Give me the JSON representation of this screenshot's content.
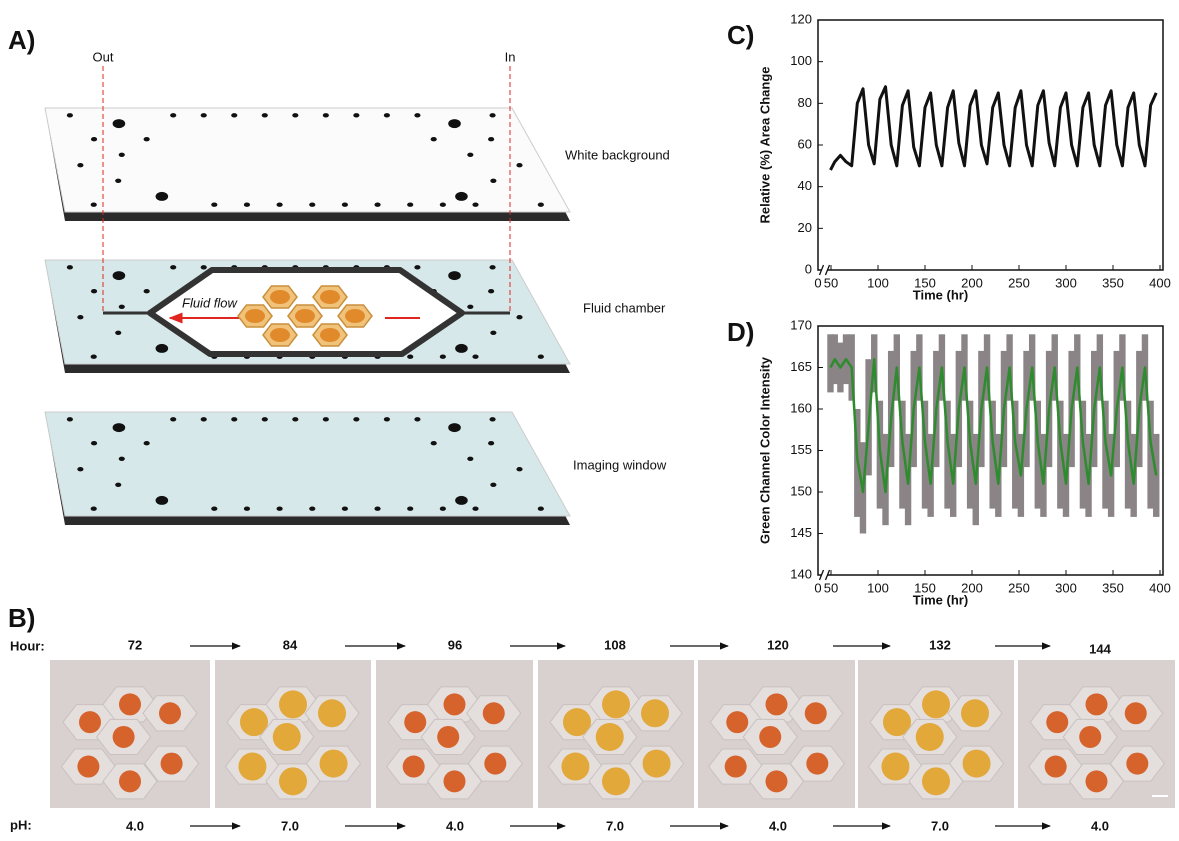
{
  "panel_a": {
    "label": "A)",
    "out": "Out",
    "in": "In",
    "layers": [
      "White background",
      "Fluid chamber",
      "Imaging window"
    ],
    "flow": "Fluid flow"
  },
  "panel_b": {
    "label": "B)",
    "hour_label": "Hour:",
    "hours": [
      72,
      84,
      96,
      108,
      120,
      132,
      144
    ],
    "ph_label": "pH:",
    "ph": [
      "4.0",
      "7.0",
      "4.0",
      "7.0",
      "4.0",
      "7.0",
      "4.0"
    ]
  },
  "chart_data": [
    {
      "type": "line",
      "panel_label": "C)",
      "ylabel": "Relative (%) Area Change",
      "xlabel": "Time (hr)",
      "xlim": [
        0,
        400
      ],
      "xticks": [
        0,
        50,
        100,
        150,
        200,
        250,
        300,
        350,
        400
      ],
      "ylim": [
        0,
        120
      ],
      "yticks": [
        0,
        20,
        40,
        60,
        80,
        100,
        120
      ],
      "x": [
        48,
        54,
        60,
        66,
        72,
        78,
        84,
        90,
        96,
        102,
        108,
        114,
        120,
        126,
        132,
        138,
        144,
        150,
        156,
        162,
        168,
        174,
        180,
        186,
        192,
        198,
        204,
        210,
        216,
        222,
        228,
        234,
        240,
        246,
        252,
        258,
        264,
        270,
        276,
        282,
        288,
        294,
        300,
        306,
        312,
        318,
        324,
        330,
        336,
        342,
        348,
        354,
        360,
        366,
        372,
        378,
        384,
        390,
        396
      ],
      "series": [
        {
          "color": "#111111",
          "values": [
            48,
            52,
            55,
            52,
            50,
            80,
            87,
            60,
            51,
            82,
            88,
            60,
            50,
            79,
            86,
            59,
            50,
            78,
            85,
            60,
            50,
            78,
            86,
            61,
            50,
            79,
            86,
            60,
            51,
            78,
            85,
            60,
            50,
            78,
            86,
            60,
            50,
            79,
            86,
            61,
            50,
            78,
            85,
            60,
            50,
            78,
            85,
            60,
            50,
            79,
            86,
            60,
            50,
            78,
            85,
            60,
            50,
            79,
            85
          ]
        }
      ]
    },
    {
      "type": "band_line",
      "panel_label": "D)",
      "ylabel": "Green Channel Color Intensity",
      "xlabel": "Time (hr)",
      "xlim": [
        0,
        400
      ],
      "xticks": [
        0,
        50,
        100,
        150,
        200,
        250,
        300,
        350,
        400
      ],
      "ylim": [
        140,
        170
      ],
      "yticks": [
        140,
        145,
        150,
        155,
        160,
        165,
        170
      ],
      "x": [
        48,
        54,
        60,
        66,
        72,
        78,
        84,
        90,
        96,
        102,
        108,
        114,
        120,
        126,
        132,
        138,
        144,
        150,
        156,
        162,
        168,
        174,
        180,
        186,
        192,
        198,
        204,
        210,
        216,
        222,
        228,
        234,
        240,
        246,
        252,
        258,
        264,
        270,
        276,
        282,
        288,
        294,
        300,
        306,
        312,
        318,
        324,
        330,
        336,
        342,
        348,
        354,
        360,
        366,
        372,
        378,
        384,
        390,
        396
      ],
      "series": [
        {
          "color": "#2e8b2e",
          "band_color": "#8a8486",
          "values": [
            165,
            166,
            165,
            166,
            165,
            154,
            150,
            158,
            166,
            155,
            150,
            159,
            165,
            156,
            151,
            160,
            165,
            156,
            151,
            160,
            165,
            156,
            151,
            160,
            165,
            156,
            151,
            160,
            165,
            156,
            151,
            160,
            165,
            156,
            152,
            160,
            165,
            156,
            151,
            160,
            165,
            156,
            151,
            160,
            165,
            156,
            151,
            160,
            165,
            156,
            152,
            160,
            165,
            156,
            151,
            160,
            165,
            156,
            152
          ],
          "lower": [
            162,
            163,
            162,
            163,
            161,
            147,
            145,
            152,
            162,
            148,
            146,
            153,
            161,
            148,
            146,
            153,
            161,
            148,
            147,
            153,
            161,
            148,
            147,
            153,
            161,
            148,
            146,
            153,
            161,
            148,
            147,
            153,
            161,
            148,
            147,
            153,
            161,
            148,
            147,
            153,
            161,
            148,
            147,
            153,
            161,
            148,
            147,
            153,
            161,
            148,
            147,
            153,
            161,
            148,
            147,
            153,
            161,
            148,
            147
          ],
          "upper": [
            169,
            169,
            168,
            169,
            169,
            160,
            156,
            166,
            169,
            161,
            157,
            167,
            169,
            161,
            157,
            167,
            169,
            161,
            157,
            167,
            169,
            161,
            157,
            167,
            169,
            161,
            157,
            167,
            169,
            161,
            157,
            167,
            169,
            161,
            157,
            167,
            169,
            161,
            157,
            167,
            169,
            161,
            157,
            167,
            169,
            161,
            157,
            167,
            169,
            161,
            157,
            167,
            169,
            161,
            157,
            167,
            169,
            161,
            157
          ]
        }
      ]
    }
  ]
}
